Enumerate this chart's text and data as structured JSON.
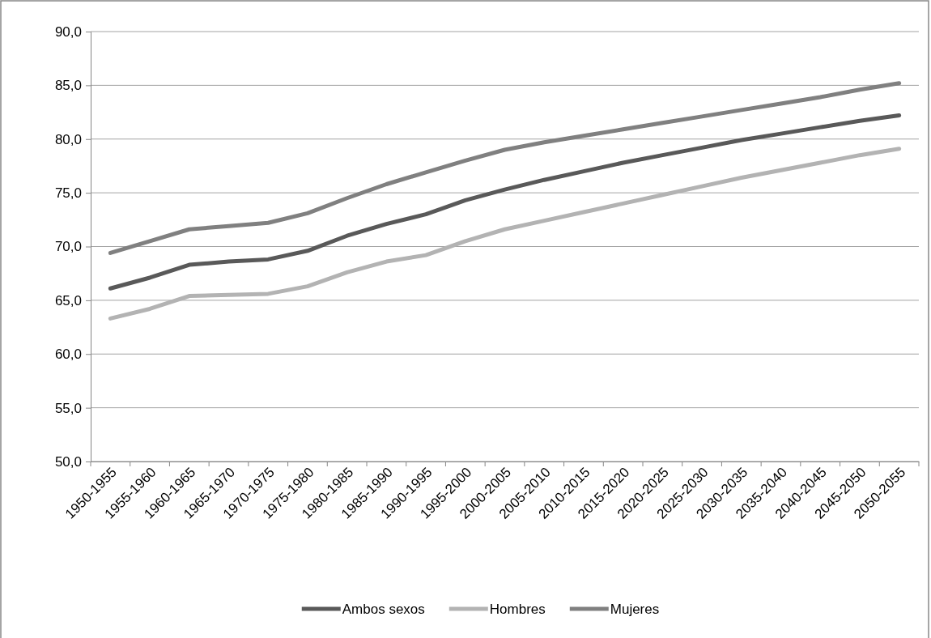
{
  "chart_data": {
    "type": "line",
    "categories": [
      "1950-1955",
      "1955-1960",
      "1960-1965",
      "1965-1970",
      "1970-1975",
      "1975-1980",
      "1980-1985",
      "1985-1990",
      "1990-1995",
      "1995-2000",
      "2000-2005",
      "2005-2010",
      "2010-2015",
      "2015-2020",
      "2020-2025",
      "2025-2030",
      "2030-2035",
      "2035-2040",
      "2040-2045",
      "2045-2050",
      "2050-2055"
    ],
    "series": [
      {
        "name": "Ambos sexos",
        "color": "#595959",
        "values": [
          66.1,
          67.1,
          68.3,
          68.6,
          68.8,
          69.6,
          71.0,
          72.1,
          73.0,
          74.3,
          75.3,
          76.2,
          77.0,
          77.8,
          78.5,
          79.2,
          79.9,
          80.5,
          81.1,
          81.7,
          82.2
        ]
      },
      {
        "name": "Hombres",
        "color": "#b3b3b3",
        "values": [
          63.3,
          64.2,
          65.4,
          65.5,
          65.6,
          66.3,
          67.6,
          68.6,
          69.2,
          70.5,
          71.6,
          72.4,
          73.2,
          74.0,
          74.8,
          75.6,
          76.4,
          77.1,
          77.8,
          78.5,
          79.1
        ]
      },
      {
        "name": "Mujeres",
        "color": "#808080",
        "values": [
          69.4,
          70.5,
          71.6,
          71.9,
          72.2,
          73.1,
          74.5,
          75.8,
          76.9,
          78.0,
          79.0,
          79.7,
          80.3,
          80.9,
          81.5,
          82.1,
          82.7,
          83.3,
          83.9,
          84.6,
          85.2
        ]
      }
    ],
    "ylim": [
      50,
      90
    ],
    "yticks": [
      {
        "value": 50,
        "label": "50,0"
      },
      {
        "value": 55,
        "label": "55,0"
      },
      {
        "value": 60,
        "label": "60,0"
      },
      {
        "value": 65,
        "label": "65,0"
      },
      {
        "value": 70,
        "label": "70,0"
      },
      {
        "value": 75,
        "label": "75,0"
      },
      {
        "value": 80,
        "label": "80,0"
      },
      {
        "value": 85,
        "label": "85,0"
      },
      {
        "value": 90,
        "label": "90,0"
      }
    ],
    "grid": "y",
    "legend": "bottom",
    "marker": "none",
    "line_style": "solid"
  }
}
